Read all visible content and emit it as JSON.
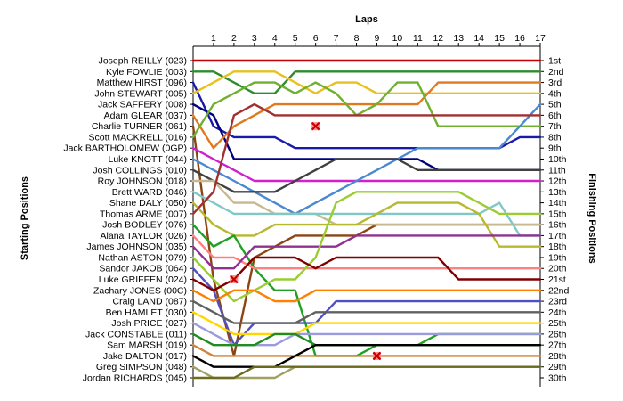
{
  "chart_data": {
    "type": "line",
    "title": "Laps",
    "ylabel_left": "Starting Positions",
    "ylabel_right": "Finishing Positions",
    "x": [
      0,
      1,
      2,
      3,
      4,
      5,
      6,
      7,
      8,
      9,
      10,
      11,
      12,
      13,
      14,
      15,
      16,
      17
    ],
    "x_ticks": [
      "1",
      "2",
      "3",
      "4",
      "5",
      "6",
      "7",
      "8",
      "9",
      "10",
      "11",
      "12",
      "13",
      "14",
      "15",
      "16",
      "17"
    ],
    "drivers": [
      "Joseph REILLY (023)",
      "Kyle FOWLIE (003)",
      "Matthew HIRST (096)",
      "John STEWART (005)",
      "Jack SAFFERY (008)",
      "Adam GLEAR (037)",
      "Charlie TURNER (061)",
      "Scott MACKRELL (016)",
      "Jack BARTHOLOMEW (0GP)",
      "Luke KNOTT (044)",
      "Josh COLLINGS (010)",
      "Roy JOHNSON (018)",
      "Brett WARD (046)",
      "Shane DALY (050)",
      "Thomas ARME (007)",
      "Josh BODLEY (076)",
      "Alana TAYLOR (026)",
      "James JOHNSON (035)",
      "Nathan ASTON (079)",
      "Sandor JAKOB (064)",
      "Luke GRIFFEN (024)",
      "Zachary JONES (00C)",
      "Craig LAND (087)",
      "Ben HAMLET (030)",
      "Josh PRICE (027)",
      "Jack CONSTABLE (011)",
      "Sam MARSH (019)",
      "Jake DALTON (017)",
      "Greg SIMPSON (048)",
      "Jordan RICHARDS (045)"
    ],
    "finishing": [
      "1st",
      "2nd",
      "3rd",
      "4th",
      "5th",
      "6th",
      "7th",
      "8th",
      "9th",
      "10th",
      "11th",
      "12th",
      "13th",
      "14th",
      "15th",
      "16th",
      "17th",
      "18th",
      "19th",
      "20th",
      "21st",
      "22nd",
      "23rd",
      "24th",
      "25th",
      "26th",
      "27th",
      "28th",
      "29th",
      "30th"
    ],
    "ylim": [
      1,
      30
    ],
    "grid": false,
    "series": [
      {
        "color": "#c00000",
        "positions": [
          1,
          1,
          1,
          1,
          1,
          1,
          1,
          1,
          1,
          1,
          1,
          1,
          1,
          1,
          1,
          1,
          1,
          1
        ]
      },
      {
        "color": "#2e8b2e",
        "positions": [
          2,
          2,
          3,
          4,
          4,
          2,
          2,
          2,
          2,
          2,
          2,
          2,
          2,
          2,
          2,
          2,
          2,
          2
        ]
      },
      {
        "color": "#1a1aaa",
        "positions": [
          3,
          7,
          8,
          8,
          8,
          9,
          9,
          9,
          9,
          9,
          9,
          9,
          9,
          9,
          9,
          9,
          8,
          8
        ]
      },
      {
        "color": "#e8c020",
        "positions": [
          4,
          3,
          2,
          2,
          2,
          3,
          4,
          3,
          3,
          4,
          4,
          4,
          4,
          4,
          4,
          4,
          4,
          4
        ]
      },
      {
        "color": "#000080",
        "positions": [
          5,
          6,
          10,
          10,
          10,
          10,
          10,
          10,
          10,
          10,
          10,
          10,
          11,
          11,
          11,
          11,
          11,
          11
        ]
      },
      {
        "color": "#e07a20",
        "positions": [
          6,
          9,
          7,
          6,
          5,
          5,
          5,
          5,
          5,
          5,
          5,
          5,
          3,
          3,
          3,
          3,
          3,
          3
        ]
      },
      {
        "color": "#8b4513",
        "positions": [
          7,
          21,
          28,
          19,
          18,
          17,
          17,
          17,
          17,
          16,
          16,
          16,
          16,
          16,
          16,
          16,
          16,
          16
        ]
      },
      {
        "color": "#70b030",
        "positions": [
          8,
          5,
          4,
          3,
          3,
          4,
          3,
          4,
          6,
          5,
          3,
          3,
          7,
          7,
          7,
          7,
          7,
          7
        ]
      },
      {
        "color": "#d020d0",
        "positions": [
          9,
          10,
          11,
          12,
          12,
          12,
          12,
          12,
          12,
          12,
          12,
          12,
          12,
          12,
          12,
          12,
          12,
          12
        ]
      },
      {
        "color": "#4a88d0",
        "positions": [
          10,
          11,
          12,
          13,
          14,
          15,
          14,
          13,
          12,
          11,
          10,
          9,
          9,
          9,
          9,
          9,
          7,
          5
        ]
      },
      {
        "color": "#404040",
        "positions": [
          11,
          12,
          13,
          13,
          13,
          12,
          11,
          10,
          10,
          10,
          10,
          11,
          11,
          11,
          11,
          11,
          11,
          11
        ]
      },
      {
        "color": "#c8b890",
        "positions": [
          12,
          12,
          14,
          14,
          15,
          15,
          15,
          16,
          16,
          16,
          16,
          16,
          16,
          16,
          16,
          16,
          16,
          16
        ]
      },
      {
        "color": "#80c8c8",
        "positions": [
          13,
          14,
          15,
          15,
          15,
          15,
          15,
          15,
          15,
          15,
          15,
          15,
          15,
          15,
          15,
          14,
          17,
          17
        ]
      },
      {
        "color": "#b8b830",
        "positions": [
          14,
          16,
          17,
          17,
          16,
          16,
          16,
          16,
          16,
          15,
          14,
          14,
          14,
          14,
          15,
          18,
          18,
          18
        ]
      },
      {
        "color": "#a03030",
        "positions": [
          15,
          13,
          6,
          5,
          6,
          6,
          6,
          6,
          6,
          6,
          6,
          6,
          6,
          6,
          6,
          6,
          6,
          6
        ]
      },
      {
        "color": "#20a020",
        "positions": [
          16,
          18,
          17,
          20,
          22,
          22,
          28,
          28,
          28,
          27,
          27,
          27,
          26,
          26,
          26,
          26,
          26,
          26
        ]
      },
      {
        "color": "#ff8080",
        "positions": [
          17,
          19,
          19,
          20,
          20,
          20,
          20,
          20,
          20,
          20,
          20,
          20,
          20,
          20,
          20,
          20,
          20,
          20
        ]
      },
      {
        "color": "#903090",
        "positions": [
          18,
          20,
          20,
          18,
          18,
          18,
          18,
          18,
          17,
          17,
          17,
          17,
          17,
          17,
          17,
          17,
          17,
          17
        ]
      },
      {
        "color": "#9acd32",
        "positions": [
          19,
          21,
          23,
          22,
          21,
          21,
          19,
          14,
          13,
          13,
          13,
          13,
          13,
          13,
          14,
          15,
          15,
          15
        ]
      },
      {
        "color": "#5050c0",
        "positions": [
          20,
          22,
          27,
          25,
          25,
          25,
          25,
          23,
          23,
          23,
          23,
          23,
          23,
          23,
          23,
          23,
          23,
          23
        ]
      },
      {
        "color": "#800000",
        "positions": [
          21,
          22,
          21,
          19,
          19,
          19,
          20,
          19,
          19,
          19,
          19,
          19,
          19,
          21,
          21,
          21,
          21,
          21
        ]
      },
      {
        "color": "#ff7f00",
        "positions": [
          22,
          23,
          22,
          22,
          23,
          23,
          22,
          22,
          22,
          22,
          22,
          22,
          22,
          22,
          22,
          22,
          22,
          22
        ]
      },
      {
        "color": "#606060",
        "positions": [
          23,
          24,
          25,
          25,
          25,
          25,
          24,
          24,
          24,
          24,
          24,
          24,
          24,
          24,
          24,
          24,
          24,
          24
        ]
      },
      {
        "color": "#ffd700",
        "positions": [
          24,
          25,
          26,
          26,
          26,
          26,
          25,
          25,
          25,
          25,
          25,
          25,
          25,
          25,
          25,
          25,
          25,
          25
        ]
      },
      {
        "color": "#9a9ae0",
        "positions": [
          25,
          26,
          27,
          27,
          27,
          26,
          26,
          26,
          26,
          26,
          26,
          26,
          26,
          26,
          26,
          26,
          26,
          26
        ]
      },
      {
        "color": "#228b22",
        "positions": [
          26,
          27,
          27,
          27,
          26,
          26,
          27,
          27,
          27,
          27,
          27,
          27,
          27,
          27,
          27,
          27,
          27,
          27
        ]
      },
      {
        "color": "#cd853f",
        "positions": [
          27,
          28,
          28,
          28,
          28,
          28,
          28,
          28,
          28,
          28,
          28,
          28,
          28,
          28,
          28,
          28,
          28,
          28
        ]
      },
      {
        "color": "#000000",
        "positions": [
          28,
          29,
          29,
          29,
          29,
          28,
          27,
          27,
          27,
          27,
          27,
          27,
          27,
          27,
          27,
          27,
          27,
          27
        ]
      },
      {
        "color": "#a0a060",
        "positions": [
          29,
          30,
          30,
          30,
          30,
          29,
          29,
          29,
          29,
          29,
          29,
          29,
          29,
          29,
          29,
          29,
          29,
          29
        ]
      },
      {
        "color": "#6b6b20",
        "positions": [
          30,
          30,
          30,
          29,
          29,
          29,
          29,
          29,
          29,
          29,
          29,
          29,
          29,
          29,
          29,
          29,
          29,
          29
        ]
      }
    ],
    "retirements": [
      {
        "lap": 6,
        "position": 7
      },
      {
        "lap": 2,
        "position": 21
      },
      {
        "lap": 9,
        "position": 28
      }
    ]
  }
}
